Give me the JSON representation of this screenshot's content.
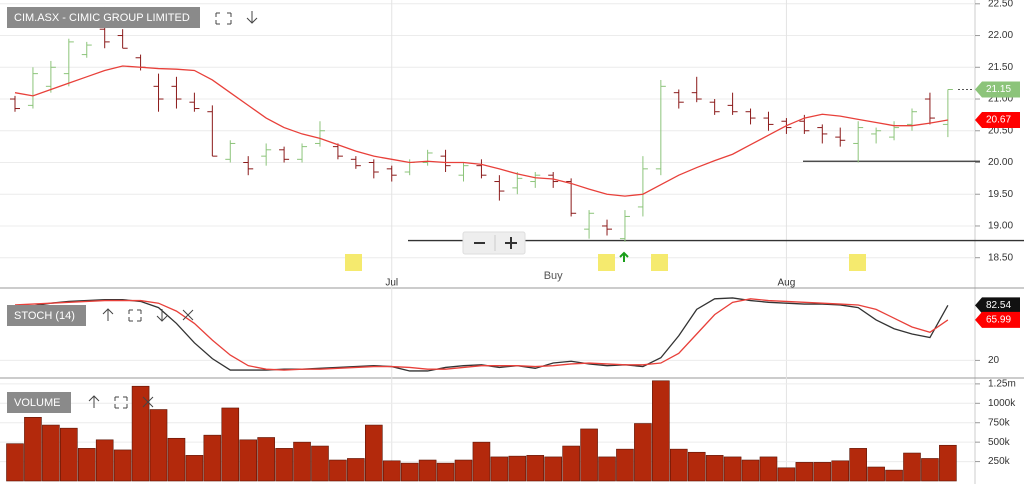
{
  "chart_data": [
    {
      "type": "ohlc",
      "title": "CIM.ASX - CIMIC GROUP LIMITED",
      "categories": [
        null,
        null,
        null,
        null,
        null,
        null,
        null,
        null,
        null,
        null,
        null,
        null,
        null,
        null,
        null,
        null,
        null,
        null,
        null,
        null,
        null,
        "Jul",
        null,
        null,
        null,
        null,
        null,
        null,
        null,
        null,
        null,
        null,
        null,
        null,
        null,
        null,
        null,
        null,
        null,
        null,
        null,
        null,
        null,
        "Aug",
        null,
        null,
        null,
        null,
        null,
        null,
        null,
        null,
        null
      ],
      "open": [
        21.0,
        20.9,
        21.2,
        21.4,
        21.7,
        22.1,
        22.0,
        21.65,
        21.2,
        21.2,
        20.95,
        20.8,
        20.05,
        20.0,
        20.1,
        20.2,
        20.05,
        20.3,
        20.25,
        20.05,
        20.0,
        19.9,
        19.85,
        20.0,
        20.1,
        19.8,
        19.95,
        19.7,
        19.6,
        19.7,
        19.8,
        19.7,
        18.95,
        19.0,
        18.8,
        19.3,
        19.9,
        21.1,
        21.1,
        20.95,
        20.9,
        20.8,
        20.7,
        20.65,
        20.65,
        20.55,
        20.4,
        20.3,
        20.45,
        20.4,
        20.6,
        21.0,
        20.6
      ],
      "high": [
        21.05,
        21.5,
        21.6,
        21.95,
        21.9,
        22.45,
        22.1,
        21.7,
        21.4,
        21.35,
        21.1,
        20.9,
        20.35,
        20.1,
        20.3,
        20.25,
        20.3,
        20.65,
        20.3,
        20.1,
        20.05,
        19.95,
        20.05,
        20.2,
        20.2,
        20.0,
        20.05,
        19.8,
        19.85,
        19.85,
        19.85,
        19.75,
        19.25,
        19.1,
        19.25,
        20.1,
        21.3,
        21.15,
        21.35,
        21.0,
        21.1,
        20.85,
        20.8,
        20.7,
        20.75,
        20.6,
        20.55,
        20.65,
        20.55,
        20.65,
        20.85,
        21.1,
        21.15
      ],
      "low": [
        20.8,
        20.85,
        21.1,
        21.2,
        21.65,
        21.8,
        21.8,
        21.45,
        20.8,
        20.85,
        20.8,
        20.1,
        20.0,
        19.8,
        19.95,
        20.0,
        20.0,
        20.25,
        20.05,
        19.9,
        19.75,
        19.7,
        19.8,
        19.95,
        19.85,
        19.7,
        19.75,
        19.4,
        19.5,
        19.6,
        19.6,
        19.15,
        18.8,
        18.85,
        18.75,
        19.15,
        19.8,
        20.85,
        20.95,
        20.75,
        20.75,
        20.6,
        20.5,
        20.45,
        20.45,
        20.3,
        20.25,
        20.0,
        20.3,
        20.35,
        20.5,
        20.6,
        20.4
      ],
      "close": [
        20.85,
        21.4,
        21.5,
        21.9,
        21.85,
        21.9,
        21.8,
        21.5,
        21.0,
        21.0,
        20.85,
        20.1,
        20.3,
        19.9,
        20.2,
        20.05,
        20.25,
        20.5,
        20.1,
        19.95,
        19.85,
        19.8,
        20.0,
        20.15,
        19.95,
        19.95,
        19.8,
        19.55,
        19.75,
        19.8,
        19.7,
        19.2,
        19.2,
        18.95,
        19.15,
        19.9,
        21.2,
        20.95,
        21.0,
        20.8,
        20.8,
        20.7,
        20.6,
        20.55,
        20.5,
        20.45,
        20.35,
        20.55,
        20.5,
        20.55,
        20.8,
        20.7,
        21.15
      ],
      "up_color": "#8cc47a",
      "down_color": "#8b1a1a",
      "ma": {
        "color": "#e8403a",
        "values": [
          21.1,
          21.05,
          21.15,
          21.25,
          21.35,
          21.45,
          21.52,
          21.5,
          21.48,
          21.47,
          21.45,
          21.3,
          21.1,
          20.9,
          20.7,
          20.55,
          20.45,
          20.38,
          20.28,
          20.18,
          20.1,
          20.05,
          20.0,
          20.02,
          20.0,
          20.0,
          19.97,
          19.9,
          19.82,
          19.76,
          19.74,
          19.67,
          19.58,
          19.5,
          19.47,
          19.5,
          19.65,
          19.8,
          19.92,
          20.03,
          20.13,
          20.28,
          20.43,
          20.58,
          20.7,
          20.76,
          20.73,
          20.68,
          20.63,
          20.58,
          20.58,
          20.62,
          20.67
        ]
      },
      "levels": [
        18.77,
        20.02
      ],
      "annotations": [
        {
          "label": "Buy",
          "x": 30
        }
      ],
      "ylim": [
        18.07,
        22.56
      ],
      "yticks": [
        {
          "value": 18.5,
          "label": "18.50"
        },
        {
          "value": 19.0,
          "label": "19.00"
        },
        {
          "value": 19.5,
          "label": "19.50"
        },
        {
          "value": 20.0,
          "label": "20.00"
        },
        {
          "value": 20.5,
          "label": "20.50"
        },
        {
          "value": 21.0,
          "label": "21.00"
        },
        {
          "value": 21.5,
          "label": "21.50"
        },
        {
          "value": 22.0,
          "label": "22.00"
        },
        {
          "value": 22.5,
          "label": "22.50"
        }
      ],
      "grid": true
    },
    {
      "type": "line",
      "title": "STOCH (14)",
      "series": [
        {
          "color": "#333333",
          "values": [
            81,
            82,
            85,
            87,
            88,
            89,
            89,
            87,
            80,
            62,
            40,
            22,
            9,
            9,
            9,
            10,
            10,
            11,
            12,
            13,
            14,
            13,
            8,
            8,
            12,
            14,
            15,
            12,
            14,
            11,
            17,
            19,
            16,
            14,
            15,
            13,
            23,
            48,
            78,
            90,
            91,
            88,
            86,
            85,
            84,
            84,
            83,
            80,
            66,
            56,
            50,
            46,
            82.54
          ]
        },
        {
          "color": "#e8403a",
          "values": [
            83,
            84,
            85,
            86,
            87,
            88,
            88,
            88,
            85,
            76,
            62,
            43,
            26,
            14,
            10,
            9,
            10,
            10,
            11,
            12,
            13,
            13,
            12,
            10,
            10,
            12,
            14,
            14,
            14,
            13,
            14,
            16,
            17,
            16,
            15,
            15,
            17,
            28,
            50,
            72,
            86,
            90,
            88,
            87,
            86,
            85,
            84,
            83,
            78,
            68,
            58,
            52,
            65.99
          ]
        }
      ],
      "ylim": [
        0,
        100
      ],
      "yticks": [
        20
      ]
    },
    {
      "type": "bar",
      "title": "VOLUME",
      "color": "#b3290c",
      "values": [
        480000,
        820000,
        720000,
        680000,
        420000,
        530000,
        400000,
        1220000,
        920000,
        550000,
        330000,
        590000,
        940000,
        530000,
        560000,
        420000,
        500000,
        450000,
        270000,
        290000,
        720000,
        260000,
        230000,
        270000,
        230000,
        270000,
        500000,
        310000,
        320000,
        330000,
        310000,
        450000,
        670000,
        310000,
        410000,
        740000,
        1290000,
        410000,
        370000,
        330000,
        310000,
        270000,
        310000,
        170000,
        240000,
        240000,
        260000,
        420000,
        180000,
        140000,
        360000,
        290000,
        460000
      ],
      "ylim": [
        0,
        1300000
      ],
      "yticks": [
        {
          "value": 250000,
          "label": "250k"
        },
        {
          "value": 500000,
          "label": "500k"
        },
        {
          "value": 750000,
          "label": "750k"
        },
        {
          "value": 1000000,
          "label": "1000k"
        },
        {
          "value": 1250000,
          "label": "1.25m"
        }
      ]
    }
  ]
}
